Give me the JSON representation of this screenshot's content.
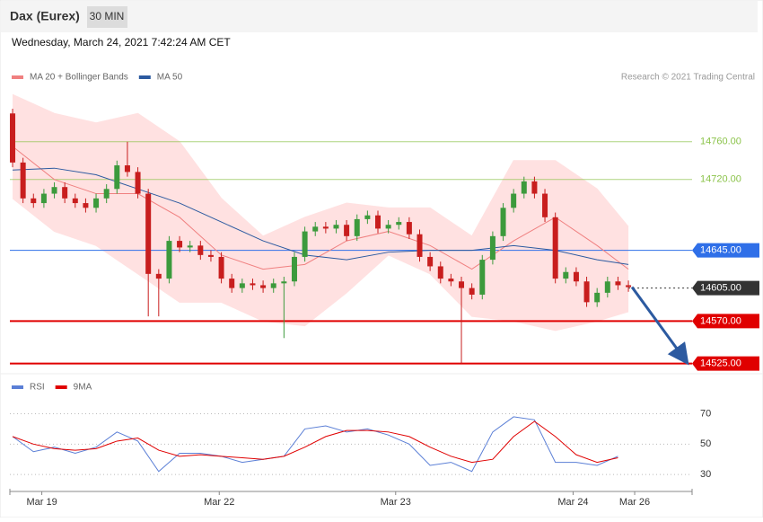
{
  "header": {
    "title": "Dax (Eurex)",
    "interval": "30 MIN",
    "date": "Wednesday, March 24, 2021 7:42:24 AM CET",
    "credit": "Research © 2021 Trading Central"
  },
  "chart_data": [
    {
      "type": "candlestick",
      "up_color": "#3c9a3c",
      "down_color": "#c81e1e",
      "ylim": [
        14518,
        14815
      ],
      "xlim": [
        -0.26,
        65.1
      ],
      "xticks": [
        {
          "value": 2.8,
          "label": "Mar 19"
        },
        {
          "value": 19.8,
          "label": "Mar 22"
        },
        {
          "value": 36.7,
          "label": "Mar 23"
        },
        {
          "value": 53.7,
          "label": "Mar 24"
        },
        {
          "value": 59.6,
          "label": "Mar 26"
        }
      ],
      "open": [
        14790,
        14738,
        14700,
        14695,
        14705,
        14712,
        14700,
        14695,
        14690,
        14700,
        14710,
        14735,
        14728,
        14705,
        14620,
        14615,
        14655,
        14648,
        14650,
        14640,
        14638,
        14615,
        14605,
        14610,
        14608,
        14605,
        14610,
        14612,
        14638,
        14665,
        14670,
        14668,
        14672,
        14660,
        14678,
        14682,
        14668,
        14672,
        14675,
        14662,
        14638,
        14628,
        14615,
        14612,
        14605,
        14598,
        14635,
        14660,
        14690,
        14705,
        14718,
        14705,
        14680,
        14615,
        14622,
        14612,
        14590,
        14600,
        14612,
        14608
      ],
      "high": [
        14795,
        14743,
        14705,
        14710,
        14717,
        14717,
        14705,
        14700,
        14705,
        14715,
        14740,
        14760,
        14733,
        14710,
        14625,
        14660,
        14660,
        14655,
        14655,
        14645,
        14643,
        14620,
        14615,
        14615,
        14613,
        14615,
        14617,
        14643,
        14670,
        14675,
        14675,
        14677,
        14677,
        14683,
        14687,
        14687,
        14677,
        14680,
        14680,
        14667,
        14643,
        14633,
        14620,
        14617,
        14610,
        14640,
        14665,
        14695,
        14710,
        14723,
        14723,
        14710,
        14685,
        14627,
        14627,
        14617,
        14605,
        14617,
        14617,
        14613
      ],
      "low": [
        14733,
        14695,
        14690,
        14690,
        14700,
        14695,
        14690,
        14685,
        14685,
        14695,
        14705,
        14723,
        14700,
        14575,
        14575,
        14610,
        14643,
        14643,
        14635,
        14633,
        14610,
        14600,
        14600,
        14603,
        14600,
        14600,
        14552,
        14607,
        14633,
        14660,
        14663,
        14663,
        14655,
        14655,
        14673,
        14663,
        14663,
        14667,
        14657,
        14633,
        14623,
        14610,
        14607,
        14525,
        14593,
        14593,
        14630,
        14655,
        14685,
        14700,
        14700,
        14675,
        14610,
        14610,
        14607,
        14585,
        14585,
        14595,
        14603,
        14601
      ],
      "close": [
        14738,
        14700,
        14695,
        14705,
        14712,
        14700,
        14695,
        14690,
        14700,
        14710,
        14735,
        14728,
        14705,
        14620,
        14615,
        14655,
        14648,
        14650,
        14640,
        14638,
        14615,
        14605,
        14610,
        14608,
        14605,
        14610,
        14612,
        14638,
        14665,
        14670,
        14668,
        14672,
        14660,
        14678,
        14682,
        14668,
        14672,
        14675,
        14662,
        14638,
        14628,
        14615,
        14612,
        14605,
        14598,
        14635,
        14660,
        14690,
        14705,
        14718,
        14705,
        14680,
        14615,
        14622,
        14612,
        14590,
        14600,
        14612,
        14608,
        14606
      ],
      "series": [
        {
          "name": "MA 20 + Bollinger Bands",
          "color": "#f08080",
          "band_color": "#ffe1e1",
          "x": [
            0,
            4,
            8,
            12,
            16,
            20,
            24,
            28,
            32,
            36,
            40,
            44,
            48,
            52,
            56,
            59
          ],
          "values": [
            14755,
            14720,
            14705,
            14705,
            14680,
            14640,
            14625,
            14630,
            14655,
            14665,
            14650,
            14625,
            14655,
            14680,
            14650,
            14625
          ],
          "upper": [
            14810,
            14790,
            14780,
            14790,
            14760,
            14700,
            14660,
            14680,
            14695,
            14690,
            14690,
            14660,
            14740,
            14740,
            14710,
            14670
          ],
          "lower": [
            14700,
            14665,
            14650,
            14620,
            14590,
            14590,
            14570,
            14565,
            14600,
            14640,
            14620,
            14575,
            14570,
            14560,
            14570,
            14580
          ]
        },
        {
          "name": "MA 50",
          "color": "#2c5aa0",
          "x": [
            0,
            4,
            8,
            12,
            16,
            20,
            24,
            28,
            32,
            36,
            40,
            44,
            48,
            52,
            56,
            59
          ],
          "values": [
            14730,
            14732,
            14725,
            14710,
            14695,
            14675,
            14655,
            14640,
            14635,
            14643,
            14645,
            14645,
            14650,
            14645,
            14635,
            14630
          ]
        }
      ],
      "levels": [
        {
          "value": 14760,
          "label": "14760.00",
          "color": "#8bc34a",
          "boxed": false,
          "style": "solid"
        },
        {
          "value": 14720,
          "label": "14720.00",
          "color": "#8bc34a",
          "boxed": false,
          "style": "solid"
        },
        {
          "value": 14645,
          "label": "14645.00",
          "color": "#2f6fe8",
          "boxed": true,
          "style": "solid"
        },
        {
          "value": 14605,
          "label": "14605.00",
          "color": "#333333",
          "boxed": true,
          "style": "dashed"
        },
        {
          "value": 14570,
          "label": "14570.00",
          "color": "#e00000",
          "boxed": true,
          "style": "solid"
        },
        {
          "value": 14525,
          "label": "14525.00",
          "color": "#e00000",
          "boxed": true,
          "style": "solid"
        }
      ]
    },
    {
      "type": "line",
      "ylim": [
        20,
        94
      ],
      "yticks": [
        70,
        50,
        30
      ],
      "series": [
        {
          "name": "RSI",
          "color": "#5b7fd6",
          "x": [
            0,
            2,
            4,
            6,
            8,
            10,
            12,
            14,
            16,
            18,
            20,
            22,
            24,
            26,
            28,
            30,
            32,
            34,
            36,
            38,
            40,
            42,
            44,
            46,
            48,
            50,
            52,
            54,
            56,
            58
          ],
          "values": [
            55,
            45,
            48,
            44,
            48,
            58,
            52,
            32,
            44,
            44,
            42,
            38,
            40,
            42,
            60,
            62,
            58,
            60,
            56,
            50,
            36,
            38,
            32,
            58,
            68,
            66,
            38,
            38,
            36,
            42
          ]
        },
        {
          "name": "9MA",
          "color": "#e00000",
          "x": [
            0,
            2,
            4,
            6,
            8,
            10,
            12,
            14,
            16,
            18,
            20,
            22,
            24,
            26,
            28,
            30,
            32,
            34,
            36,
            38,
            40,
            42,
            44,
            46,
            48,
            50,
            52,
            54,
            56,
            58
          ],
          "values": [
            55,
            50,
            47,
            46,
            47,
            52,
            54,
            46,
            42,
            43,
            42,
            41,
            40,
            42,
            48,
            55,
            59,
            59,
            58,
            55,
            48,
            42,
            38,
            40,
            55,
            65,
            55,
            43,
            38,
            41
          ]
        }
      ]
    }
  ]
}
